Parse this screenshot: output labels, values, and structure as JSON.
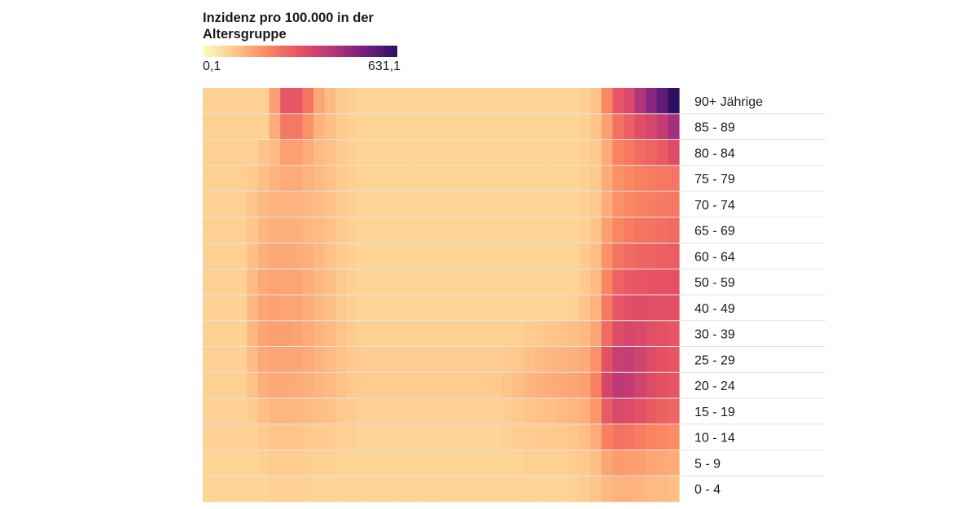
{
  "legend": {
    "title": "Inzidenz pro 100.000 in der\nAltersgruppe",
    "min_label": "0,1",
    "max_label": "631,1",
    "colors": [
      "#fcfdbf",
      "#fec68a",
      "#fb8761",
      "#e65164",
      "#b63679",
      "#721f81",
      "#2d1160"
    ]
  },
  "chart_data": {
    "type": "heatmap",
    "title": "Inzidenz pro 100.000 in der Altersgruppe",
    "value_range": [
      0.1,
      631.1
    ],
    "row_labels": [
      "90+ Jährige",
      "85 - 89",
      "80 - 84",
      "75 - 79",
      "70 - 74",
      "65 - 69",
      "60 - 64",
      "50 - 59",
      "40 - 49",
      "30 - 39",
      "25 - 29",
      "20 - 24",
      "15 - 19",
      "10 - 14",
      "5 - 9",
      "0 - 4"
    ],
    "values": [
      [
        12,
        12,
        12,
        12,
        12,
        12,
        45,
        150,
        150,
        95,
        40,
        25,
        15,
        12,
        10,
        10,
        10,
        10,
        10,
        10,
        10,
        10,
        10,
        10,
        10,
        10,
        10,
        10,
        10,
        10,
        10,
        10,
        10,
        10,
        12,
        20,
        70,
        150,
        190,
        290,
        380,
        480,
        631.1
      ],
      [
        12,
        12,
        12,
        12,
        12,
        12,
        35,
        90,
        90,
        60,
        30,
        22,
        15,
        12,
        10,
        10,
        10,
        10,
        10,
        10,
        10,
        10,
        10,
        10,
        10,
        10,
        10,
        10,
        10,
        10,
        10,
        10,
        10,
        10,
        12,
        18,
        45,
        100,
        130,
        170,
        200,
        240,
        320
      ],
      [
        12,
        12,
        12,
        12,
        12,
        18,
        25,
        45,
        45,
        35,
        25,
        20,
        15,
        12,
        10,
        10,
        10,
        10,
        10,
        10,
        10,
        10,
        10,
        10,
        10,
        10,
        10,
        10,
        10,
        10,
        10,
        10,
        10,
        10,
        12,
        15,
        35,
        75,
        90,
        110,
        120,
        140,
        180
      ],
      [
        12,
        12,
        12,
        12,
        15,
        22,
        30,
        35,
        35,
        30,
        25,
        20,
        15,
        12,
        10,
        10,
        10,
        10,
        10,
        10,
        10,
        10,
        10,
        10,
        10,
        10,
        10,
        10,
        10,
        10,
        10,
        10,
        10,
        10,
        12,
        15,
        35,
        60,
        70,
        80,
        85,
        90,
        95
      ],
      [
        12,
        12,
        12,
        12,
        18,
        25,
        30,
        30,
        30,
        28,
        25,
        20,
        15,
        12,
        10,
        10,
        10,
        10,
        10,
        10,
        10,
        10,
        10,
        10,
        10,
        10,
        10,
        10,
        10,
        10,
        10,
        10,
        10,
        10,
        12,
        15,
        35,
        60,
        70,
        78,
        82,
        88,
        92
      ],
      [
        12,
        12,
        12,
        12,
        18,
        28,
        32,
        32,
        32,
        28,
        25,
        20,
        15,
        12,
        10,
        10,
        10,
        10,
        10,
        10,
        10,
        10,
        10,
        10,
        10,
        10,
        10,
        10,
        10,
        10,
        10,
        10,
        10,
        10,
        12,
        18,
        45,
        70,
        85,
        95,
        100,
        105,
        110
      ],
      [
        12,
        12,
        12,
        12,
        22,
        32,
        38,
        38,
        36,
        32,
        26,
        20,
        15,
        12,
        10,
        10,
        10,
        10,
        10,
        10,
        10,
        10,
        10,
        10,
        10,
        10,
        10,
        10,
        10,
        10,
        10,
        10,
        10,
        10,
        15,
        22,
        60,
        95,
        110,
        120,
        125,
        130,
        135
      ],
      [
        12,
        12,
        12,
        12,
        25,
        38,
        42,
        42,
        40,
        34,
        28,
        22,
        16,
        12,
        10,
        10,
        10,
        10,
        10,
        10,
        10,
        10,
        10,
        10,
        10,
        10,
        10,
        10,
        10,
        10,
        10,
        10,
        10,
        10,
        15,
        25,
        75,
        125,
        145,
        150,
        155,
        158,
        160
      ],
      [
        12,
        12,
        12,
        12,
        28,
        40,
        45,
        42,
        40,
        35,
        28,
        22,
        16,
        12,
        10,
        10,
        10,
        10,
        10,
        10,
        10,
        10,
        10,
        10,
        10,
        10,
        10,
        10,
        10,
        10,
        10,
        10,
        10,
        12,
        18,
        30,
        90,
        150,
        170,
        175,
        170,
        168,
        165
      ],
      [
        12,
        12,
        12,
        12,
        28,
        42,
        45,
        45,
        42,
        36,
        30,
        24,
        18,
        14,
        12,
        12,
        12,
        12,
        12,
        12,
        12,
        12,
        12,
        12,
        12,
        12,
        12,
        12,
        12,
        14,
        16,
        18,
        20,
        22,
        25,
        40,
        110,
        175,
        195,
        185,
        170,
        160,
        150
      ],
      [
        12,
        12,
        12,
        12,
        25,
        38,
        42,
        42,
        40,
        35,
        30,
        25,
        20,
        16,
        14,
        14,
        14,
        14,
        14,
        14,
        14,
        14,
        14,
        14,
        14,
        14,
        14,
        15,
        17,
        20,
        25,
        28,
        30,
        32,
        35,
        60,
        160,
        230,
        240,
        210,
        180,
        160,
        150
      ],
      [
        12,
        12,
        12,
        12,
        20,
        32,
        38,
        38,
        36,
        32,
        28,
        24,
        20,
        16,
        14,
        14,
        14,
        14,
        14,
        14,
        14,
        14,
        14,
        14,
        14,
        14,
        15,
        18,
        22,
        28,
        32,
        35,
        38,
        40,
        45,
        80,
        200,
        260,
        250,
        210,
        180,
        160,
        150
      ],
      [
        12,
        12,
        12,
        12,
        15,
        22,
        28,
        28,
        26,
        24,
        22,
        20,
        16,
        14,
        12,
        12,
        12,
        12,
        12,
        12,
        12,
        12,
        12,
        12,
        12,
        12,
        12,
        14,
        16,
        18,
        20,
        22,
        25,
        28,
        32,
        55,
        140,
        190,
        180,
        160,
        140,
        130,
        120
      ],
      [
        12,
        12,
        12,
        12,
        12,
        15,
        18,
        18,
        18,
        16,
        15,
        14,
        12,
        12,
        10,
        10,
        10,
        10,
        10,
        10,
        10,
        10,
        10,
        10,
        10,
        10,
        10,
        12,
        14,
        14,
        15,
        15,
        16,
        18,
        22,
        35,
        80,
        100,
        95,
        85,
        75,
        70,
        65
      ],
      [
        10,
        10,
        10,
        10,
        10,
        12,
        14,
        14,
        14,
        13,
        12,
        12,
        10,
        10,
        10,
        10,
        10,
        10,
        10,
        10,
        10,
        10,
        10,
        10,
        10,
        10,
        10,
        10,
        10,
        12,
        12,
        12,
        12,
        14,
        16,
        22,
        40,
        50,
        48,
        45,
        40,
        38,
        35
      ],
      [
        10,
        10,
        10,
        10,
        10,
        10,
        12,
        12,
        12,
        11,
        10,
        10,
        10,
        10,
        10,
        10,
        10,
        10,
        10,
        10,
        10,
        10,
        10,
        10,
        10,
        10,
        10,
        10,
        10,
        10,
        10,
        10,
        10,
        12,
        14,
        18,
        25,
        30,
        30,
        28,
        25,
        24,
        22
      ]
    ]
  }
}
